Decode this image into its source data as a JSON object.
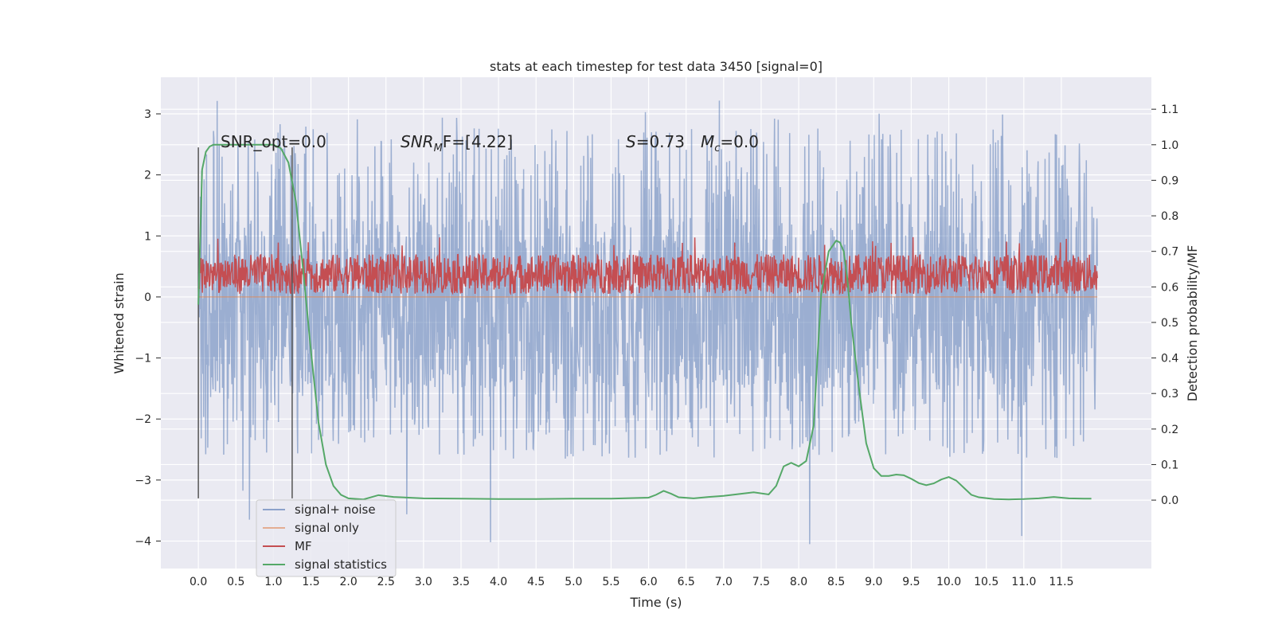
{
  "chart_data": {
    "type": "line",
    "title": "stats at each timestep for test data 3450 [signal=0]",
    "xlabel": "Time (s)",
    "ylabel_left": "Whitened strain",
    "ylabel_right": "Detection probability/MF",
    "xlim": [
      -0.5,
      12.7
    ],
    "ylim_left": [
      -4.45,
      3.6
    ],
    "ylim_right": [
      -0.1925,
      1.19
    ],
    "grid": true,
    "legend_position": "lower-left",
    "x_ticks": [
      0.0,
      0.5,
      1.0,
      1.5,
      2.0,
      2.5,
      3.0,
      3.5,
      4.0,
      4.5,
      5.0,
      5.5,
      6.0,
      6.5,
      7.0,
      7.5,
      8.0,
      8.5,
      9.0,
      9.5,
      10.0,
      10.5,
      11.0,
      11.5
    ],
    "x_tick_labels": [
      "0.0",
      "0.5",
      "1.0",
      "1.5",
      "2.0",
      "2.5",
      "3.0",
      "3.5",
      "4.0",
      "4.5",
      "5.0",
      "5.5",
      "6.0",
      "6.5",
      "7.0",
      "7.5",
      "8.0",
      "8.5",
      "9.0",
      "9.5",
      "10.0",
      "10.5",
      "11.0",
      "11.5"
    ],
    "y_left_ticks": [
      3,
      2,
      1,
      0,
      -1,
      -2,
      -3,
      -4
    ],
    "y_left_tick_labels": [
      "3",
      "2",
      "1",
      "0",
      "−1",
      "−2",
      "−3",
      "−4"
    ],
    "y_right_ticks": [
      1.1,
      1.0,
      0.9,
      0.8,
      0.7,
      0.6,
      0.5,
      0.4,
      0.3,
      0.2,
      0.1,
      0.0
    ],
    "y_right_tick_labels": [
      "1.1",
      "1.0",
      "0.9",
      "0.8",
      "0.7",
      "0.6",
      "0.5",
      "0.4",
      "0.3",
      "0.2",
      "0.1",
      "0.0"
    ],
    "annotations": [
      {
        "id": "snr_opt",
        "text": "SNR_opt=0.0"
      },
      {
        "id": "snr_mf",
        "text": "SNR_MF=[4.22]"
      },
      {
        "id": "stat_s",
        "text": "S=0.73"
      },
      {
        "id": "mchirp",
        "text": "M_c=0.0"
      }
    ],
    "vertical_lines": [
      {
        "x": 0.0,
        "y_range": [
          -3.3,
          2.45
        ]
      },
      {
        "x": 1.25,
        "y_range": [
          -3.3,
          2.45
        ]
      }
    ],
    "series": [
      {
        "name": "signal+ noise",
        "color": "#4c72b0",
        "opacity": 0.5,
        "axis": "left",
        "x_range": [
          0.0,
          11.98
        ],
        "typical_range": [
          -1.5,
          1.3
        ],
        "peak_range": [
          -4.1,
          3.25
        ]
      },
      {
        "name": "signal only",
        "color": "#dd8452",
        "opacity": 0.6,
        "axis": "left",
        "x": [
          0.0,
          11.98
        ],
        "y": [
          0.0,
          0.0
        ]
      },
      {
        "name": "MF",
        "color": "#c44e52",
        "axis": "left",
        "x_range": [
          0.0,
          11.98
        ],
        "typical_range": [
          0.05,
          0.7
        ],
        "peak_range": [
          0.0,
          0.98
        ]
      },
      {
        "name": "signal statistics",
        "color": "#55a868",
        "axis": "right",
        "x": [
          0.0,
          0.05,
          0.1,
          0.15,
          0.2,
          0.3,
          0.5,
          0.8,
          1.0,
          1.1,
          1.2,
          1.3,
          1.4,
          1.5,
          1.6,
          1.7,
          1.8,
          1.9,
          2.0,
          2.2,
          2.4,
          2.6,
          3.0,
          3.5,
          4.0,
          4.5,
          5.0,
          5.5,
          6.0,
          6.1,
          6.2,
          6.3,
          6.4,
          6.6,
          6.8,
          7.0,
          7.2,
          7.4,
          7.6,
          7.7,
          7.8,
          7.9,
          8.0,
          8.1,
          8.2,
          8.25,
          8.3,
          8.4,
          8.5,
          8.55,
          8.6,
          8.65,
          8.7,
          8.8,
          8.9,
          9.0,
          9.1,
          9.2,
          9.3,
          9.4,
          9.5,
          9.6,
          9.7,
          9.8,
          9.9,
          10.0,
          10.1,
          10.2,
          10.3,
          10.4,
          10.6,
          10.8,
          11.0,
          11.2,
          11.4,
          11.6,
          11.8,
          11.9
        ],
        "y": [
          0.55,
          0.93,
          0.98,
          0.995,
          1.0,
          1.0,
          1.0,
          1.0,
          1.0,
          0.99,
          0.95,
          0.84,
          0.64,
          0.42,
          0.22,
          0.1,
          0.04,
          0.015,
          0.005,
          0.002,
          0.014,
          0.009,
          0.005,
          0.004,
          0.003,
          0.003,
          0.004,
          0.004,
          0.007,
          0.015,
          0.026,
          0.018,
          0.008,
          0.005,
          0.009,
          0.012,
          0.017,
          0.022,
          0.016,
          0.04,
          0.095,
          0.105,
          0.095,
          0.11,
          0.21,
          0.4,
          0.58,
          0.7,
          0.73,
          0.725,
          0.7,
          0.62,
          0.5,
          0.32,
          0.16,
          0.09,
          0.068,
          0.068,
          0.072,
          0.07,
          0.06,
          0.048,
          0.042,
          0.047,
          0.058,
          0.065,
          0.055,
          0.035,
          0.015,
          0.008,
          0.003,
          0.002,
          0.003,
          0.005,
          0.009,
          0.005,
          0.004,
          0.004
        ]
      }
    ]
  }
}
